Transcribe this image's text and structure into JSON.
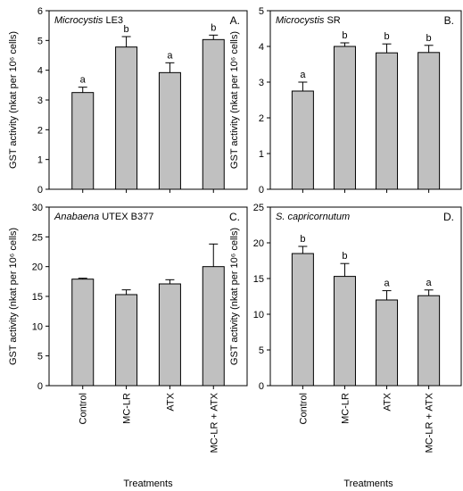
{
  "categories": [
    "Control",
    "MC-LR",
    "ATX",
    "MC-LR + ATX"
  ],
  "xlabel": "Treatments",
  "ylabel": "GST activity (nkat per 10⁶ cells)",
  "chart_data": [
    {
      "type": "bar",
      "title_italic": "Microcystis",
      "title_plain": " LE3",
      "panel_letter": "A.",
      "categories": [
        "Control",
        "MC-LR",
        "ATX",
        "MC-LR + ATX"
      ],
      "values": [
        3.25,
        4.78,
        3.92,
        5.03
      ],
      "errors": [
        0.18,
        0.35,
        0.33,
        0.15
      ],
      "significance": [
        "a",
        "b",
        "a",
        "b"
      ],
      "ylim": [
        0,
        6
      ],
      "yticks": [
        0,
        1,
        2,
        3,
        4,
        5,
        6
      ],
      "ylabel": "GST activity (nkat per 10⁶ cells)"
    },
    {
      "type": "bar",
      "title_italic": "Microcystis",
      "title_plain": " SR",
      "panel_letter": "B.",
      "categories": [
        "Control",
        "MC-LR",
        "ATX",
        "MC-LR + ATX"
      ],
      "values": [
        2.75,
        4.0,
        3.82,
        3.83
      ],
      "errors": [
        0.25,
        0.1,
        0.25,
        0.2
      ],
      "significance": [
        "a",
        "b",
        "b",
        "b"
      ],
      "ylim": [
        0,
        5
      ],
      "yticks": [
        0,
        1,
        2,
        3,
        4,
        5
      ],
      "ylabel": "GST activity (nkat per 10⁶ cells)"
    },
    {
      "type": "bar",
      "title_italic": "Anabaena",
      "title_plain": " UTEX B377",
      "panel_letter": "C.",
      "categories": [
        "Control",
        "MC-LR",
        "ATX",
        "MC-LR + ATX"
      ],
      "values": [
        17.9,
        15.3,
        17.1,
        20.0
      ],
      "errors": [
        0.15,
        0.8,
        0.7,
        3.8
      ],
      "significance": [
        "",
        "",
        "",
        ""
      ],
      "ylim": [
        0,
        30
      ],
      "yticks": [
        0,
        5,
        10,
        15,
        20,
        25,
        30
      ],
      "ylabel": "GST activity (nkat per 10⁶ cells)"
    },
    {
      "type": "bar",
      "title_italic": "S. capricornutum",
      "title_plain": "",
      "panel_letter": "D.",
      "categories": [
        "Control",
        "MC-LR",
        "ATX",
        "MC-LR + ATX"
      ],
      "values": [
        18.5,
        15.3,
        12.0,
        12.6
      ],
      "errors": [
        1.0,
        1.8,
        1.3,
        0.8
      ],
      "significance": [
        "b",
        "b",
        "a",
        "a"
      ],
      "ylim": [
        0,
        25
      ],
      "yticks": [
        0,
        5,
        10,
        15,
        20,
        25
      ],
      "ylabel": "GST activity (nkat per 10⁶ cells)"
    }
  ]
}
